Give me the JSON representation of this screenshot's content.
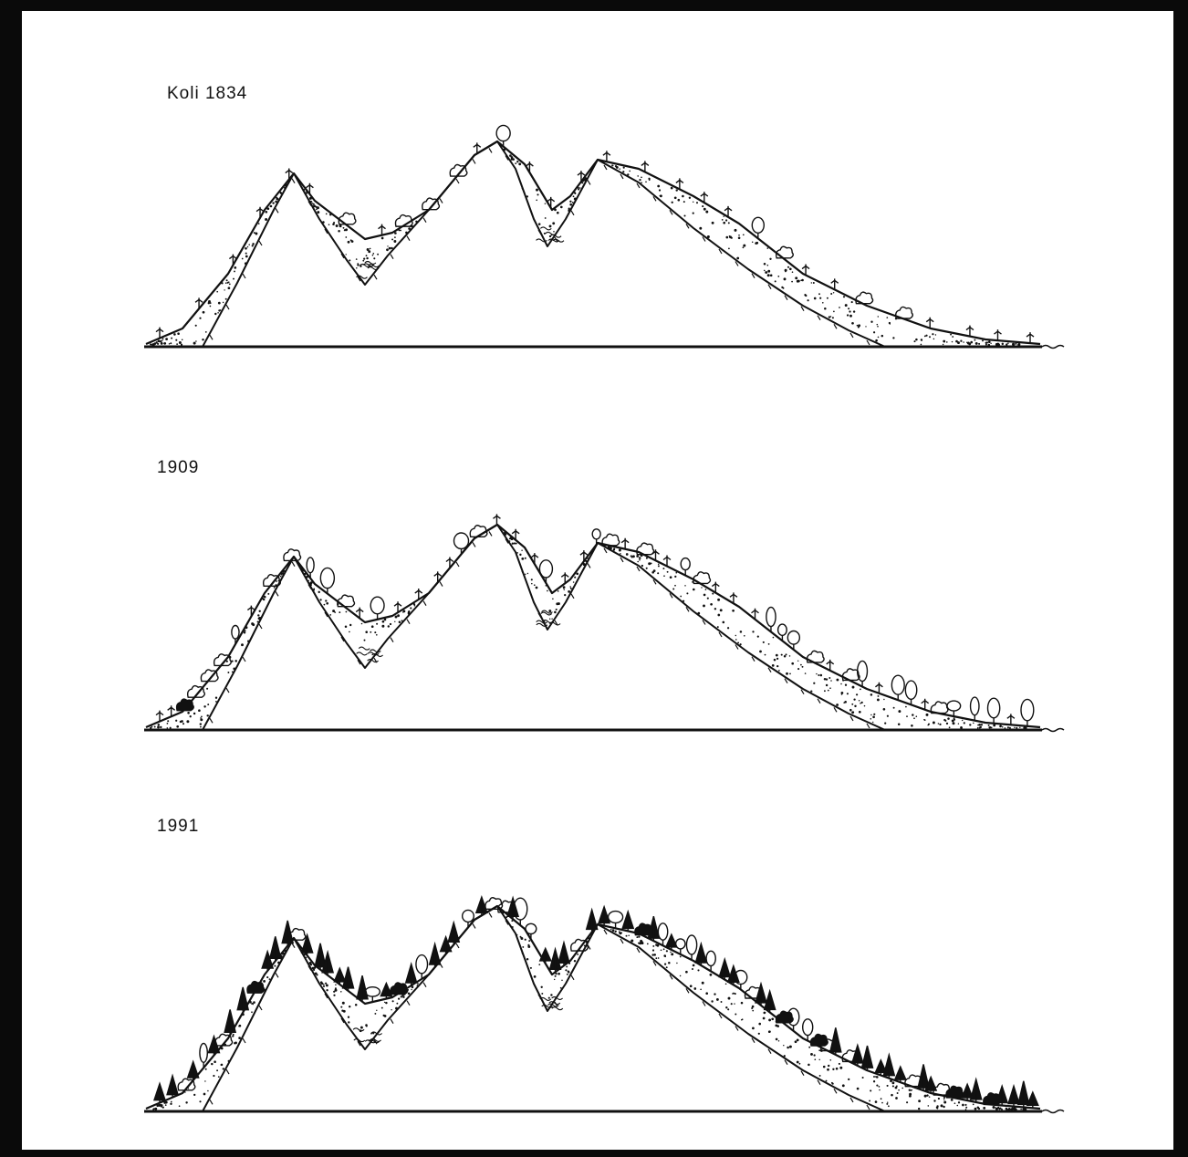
{
  "panels": [
    {
      "label": "Koli 1834",
      "vegetation": "sparse"
    },
    {
      "label": "1909",
      "vegetation": "medium"
    },
    {
      "label": "1991",
      "vegetation": "dense"
    }
  ],
  "colors": {
    "ink": "#111111",
    "paper": "#ffffff",
    "border": "#0a0a0a"
  }
}
